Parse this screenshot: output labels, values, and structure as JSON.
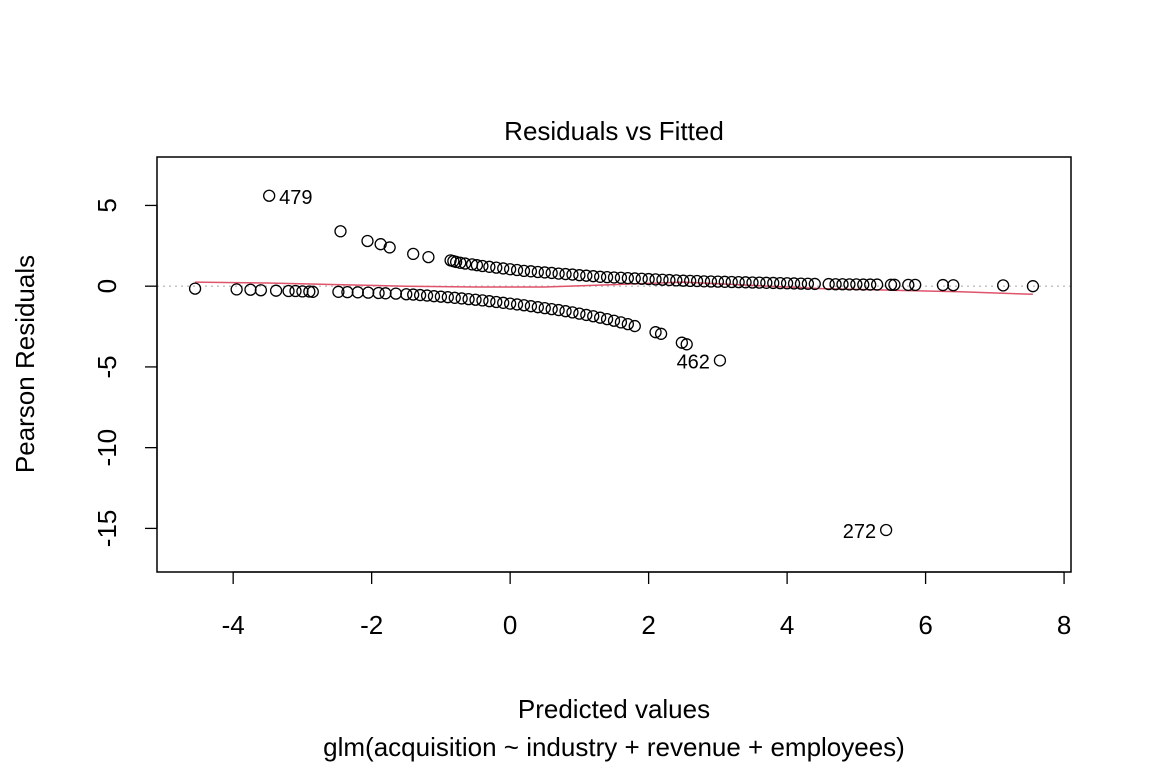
{
  "chart_data": {
    "type": "scatter",
    "title": "Residuals vs Fitted",
    "xlabel": "Predicted values",
    "subtitle": "glm(acquisition ~ industry + revenue + employees)",
    "ylabel": "Pearson Residuals",
    "xlim": [
      -5.1,
      8.1
    ],
    "ylim": [
      -17.7,
      8.0
    ],
    "xticks": [
      -4,
      -2,
      0,
      2,
      4,
      6,
      8
    ],
    "xtick_labels": [
      "-4",
      "-2",
      "0",
      "2",
      "4",
      "6",
      "8"
    ],
    "yticks": [
      5,
      0,
      -5,
      -10,
      -15
    ],
    "ytick_labels": [
      "5",
      "0",
      "-5",
      "-10",
      "-15"
    ],
    "reference_line": {
      "y": 0,
      "style": "dotted",
      "color": "#bebebe"
    },
    "smooth_color": "#df536b",
    "smooth": {
      "x": [
        -4.55,
        -3.5,
        -2.5,
        -1.5,
        -0.5,
        0.5,
        1.5,
        2.5,
        3.5,
        4.5,
        5.5,
        6.5,
        7.55
      ],
      "y": [
        0.25,
        0.2,
        0.1,
        0.0,
        -0.05,
        -0.05,
        0.1,
        0.25,
        0.05,
        -0.15,
        -0.25,
        -0.35,
        -0.5
      ]
    },
    "points": {
      "x": [
        -3.48,
        -2.45,
        -2.06,
        -1.87,
        -1.74,
        -1.4,
        -1.18,
        -0.86,
        -0.82,
        -0.78,
        -0.72,
        -0.65,
        -0.55,
        -0.48,
        -0.4,
        -0.3,
        -0.2,
        -0.1,
        0.0,
        0.1,
        0.2,
        0.3,
        0.4,
        0.5,
        0.6,
        0.7,
        0.8,
        0.9,
        1.0,
        1.1,
        1.2,
        1.3,
        1.4,
        1.5,
        1.6,
        1.7,
        1.8,
        1.9,
        2.0,
        2.1,
        2.2,
        2.3,
        2.4,
        2.5,
        2.6,
        2.7,
        2.8,
        2.9,
        3.0,
        3.1,
        3.2,
        3.3,
        3.4,
        3.5,
        3.6,
        3.7,
        3.8,
        3.9,
        4.0,
        4.1,
        4.2,
        4.3,
        4.4,
        4.6,
        4.7,
        4.8,
        4.9,
        5.0,
        5.1,
        5.2,
        5.3,
        5.5,
        5.55,
        5.75,
        5.85,
        6.25,
        6.4,
        7.12,
        7.55,
        -4.55,
        -3.95,
        -3.75,
        -3.6,
        -3.38,
        -3.2,
        -3.1,
        -3.0,
        -2.9,
        -2.85,
        -2.48,
        -2.35,
        -2.2,
        -2.05,
        -1.9,
        -1.8,
        -1.65,
        -1.5,
        -1.4,
        -1.3,
        -1.2,
        -1.1,
        -1.0,
        -0.9,
        -0.8,
        -0.7,
        -0.6,
        -0.5,
        -0.4,
        -0.3,
        -0.2,
        -0.1,
        0.0,
        0.1,
        0.2,
        0.3,
        0.4,
        0.5,
        0.6,
        0.7,
        0.8,
        0.9,
        1.0,
        1.1,
        1.2,
        1.3,
        1.4,
        1.5,
        1.6,
        1.7,
        1.8,
        2.1,
        2.18,
        2.48,
        2.55,
        3.03,
        5.43
      ],
      "y": [
        5.6,
        3.4,
        2.8,
        2.6,
        2.4,
        2.0,
        1.8,
        1.6,
        1.55,
        1.5,
        1.45,
        1.4,
        1.35,
        1.3,
        1.25,
        1.2,
        1.15,
        1.1,
        1.05,
        1.0,
        0.95,
        0.92,
        0.88,
        0.85,
        0.82,
        0.78,
        0.75,
        0.72,
        0.68,
        0.65,
        0.62,
        0.58,
        0.56,
        0.54,
        0.52,
        0.5,
        0.48,
        0.46,
        0.44,
        0.42,
        0.4,
        0.38,
        0.36,
        0.34,
        0.33,
        0.32,
        0.3,
        0.29,
        0.28,
        0.27,
        0.26,
        0.25,
        0.24,
        0.23,
        0.22,
        0.21,
        0.2,
        0.19,
        0.18,
        0.17,
        0.16,
        0.15,
        0.14,
        0.13,
        0.12,
        0.12,
        0.11,
        0.11,
        0.1,
        0.1,
        0.1,
        0.09,
        0.09,
        0.08,
        0.08,
        0.07,
        0.06,
        0.05,
        0.0,
        -0.15,
        -0.2,
        -0.22,
        -0.25,
        -0.28,
        -0.3,
        -0.3,
        -0.32,
        -0.33,
        -0.35,
        -0.35,
        -0.37,
        -0.38,
        -0.4,
        -0.42,
        -0.44,
        -0.46,
        -0.5,
        -0.52,
        -0.55,
        -0.58,
        -0.62,
        -0.65,
        -0.68,
        -0.72,
        -0.76,
        -0.8,
        -0.84,
        -0.88,
        -0.93,
        -0.98,
        -1.03,
        -1.08,
        -1.13,
        -1.18,
        -1.24,
        -1.3,
        -1.36,
        -1.42,
        -1.48,
        -1.55,
        -1.62,
        -1.7,
        -1.78,
        -1.86,
        -1.95,
        -2.04,
        -2.14,
        -2.24,
        -2.35,
        -2.47,
        -2.85,
        -2.95,
        -3.5,
        -3.6,
        -4.6,
        -15.1
      ]
    },
    "labeled_points": [
      {
        "label": "479",
        "x": -3.48,
        "y": 5.6,
        "side": "right"
      },
      {
        "label": "462",
        "x": 3.03,
        "y": -4.6,
        "side": "left"
      },
      {
        "label": "272",
        "x": 5.43,
        "y": -15.1,
        "side": "left"
      }
    ]
  }
}
